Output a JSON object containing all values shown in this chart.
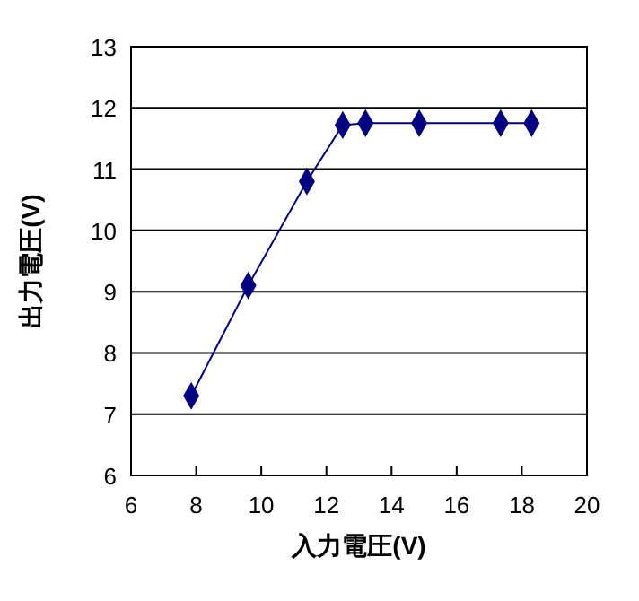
{
  "chart_data": {
    "type": "line",
    "xlabel": "入力電圧(V)",
    "ylabel": "出力電圧(V)",
    "x": [
      7.85,
      9.6,
      11.4,
      12.5,
      13.2,
      14.85,
      17.35,
      18.3
    ],
    "series": [
      {
        "color": "#000080",
        "values": [
          7.3,
          9.1,
          10.8,
          11.72,
          11.75,
          11.75,
          11.75,
          11.75
        ]
      }
    ],
    "xlim": [
      6,
      20
    ],
    "xticks": [
      6,
      8,
      10,
      12,
      14,
      16,
      18,
      20
    ],
    "ylim": [
      6,
      13
    ],
    "yticks": [
      6,
      7,
      8,
      9,
      10,
      11,
      12,
      13
    ],
    "grid": "y",
    "marker": "diamond",
    "line_style": "solid"
  }
}
